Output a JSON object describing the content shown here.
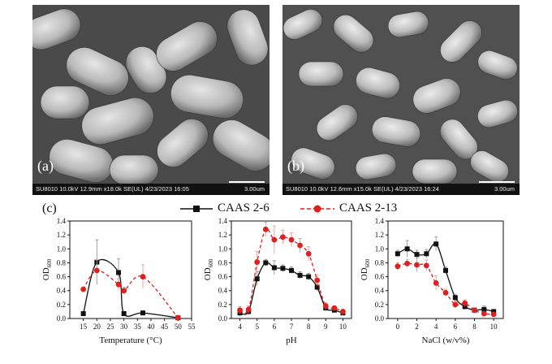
{
  "panels": {
    "a": {
      "letter": "(a)",
      "meta": "SU8010 10.0kV 12.9mm x18.0k SE(UL) 4/23/2023 16:05",
      "scale": "3.00um"
    },
    "b": {
      "letter": "(b)",
      "meta": "SU8010 10.0kV 12.6mm x15.0k SE(UL) 4/23/2023 16:24",
      "scale": "3.00um"
    },
    "c": {
      "letter": "(c)"
    }
  },
  "legend": {
    "series1": "CAAS 2-6",
    "series2": "CAAS 2-13"
  },
  "colors": {
    "series1": "#111111",
    "series2": "#e02020"
  },
  "chart_data": [
    {
      "type": "line",
      "xlabel": "Temperature (°C)",
      "ylabel": "OD600",
      "xlim": [
        10,
        55
      ],
      "ylim": [
        0,
        1.4
      ],
      "xticks": [
        15,
        20,
        25,
        30,
        35,
        40,
        45,
        50,
        55
      ],
      "yticks": [
        0.0,
        0.2,
        0.4,
        0.6,
        0.8,
        1.0,
        1.2,
        1.4
      ],
      "series": [
        {
          "name": "CAAS 2-6",
          "x": [
            15,
            20,
            28,
            30,
            37,
            50
          ],
          "y": [
            0.07,
            0.81,
            0.66,
            0.07,
            0.08,
            0.01
          ],
          "err": [
            0,
            0.32,
            0.2,
            0,
            0.02,
            0
          ]
        },
        {
          "name": "CAAS 2-13",
          "x": [
            15,
            20,
            28,
            30,
            37,
            50
          ],
          "y": [
            0.42,
            0.69,
            0.49,
            0.4,
            0.6,
            0.01
          ],
          "err": [
            0,
            0.15,
            0.08,
            0.05,
            0.17,
            0
          ]
        }
      ]
    },
    {
      "type": "line",
      "xlabel": "pH",
      "ylabel": "OD600",
      "xlim": [
        3.5,
        10.5
      ],
      "ylim": [
        0,
        1.4
      ],
      "xticks": [
        4,
        5,
        6,
        7,
        8,
        9,
        10
      ],
      "yticks": [
        0.0,
        0.2,
        0.4,
        0.6,
        0.8,
        1.0,
        1.2,
        1.4
      ],
      "series": [
        {
          "name": "CAAS 2-6",
          "x": [
            4,
            4.5,
            5,
            5.5,
            6,
            6.5,
            7,
            7.5,
            8,
            8.5,
            9,
            9.5,
            10
          ],
          "y": [
            0.08,
            0.1,
            0.57,
            0.8,
            0.73,
            0.72,
            0.69,
            0.62,
            0.6,
            0.45,
            0.15,
            0.12,
            0.08
          ],
          "err": [
            0.05,
            0.05,
            0.1,
            0.05,
            0.1,
            0.05,
            0.05,
            0.05,
            0.05,
            0.05,
            0.03,
            0.03,
            0.03
          ]
        },
        {
          "name": "CAAS 2-13",
          "x": [
            4,
            4.5,
            5,
            5.5,
            6,
            6.5,
            7,
            7.5,
            8,
            8.5,
            9,
            9.5,
            10
          ],
          "y": [
            0.12,
            0.13,
            0.81,
            1.28,
            1.13,
            1.17,
            1.13,
            1.05,
            0.93,
            0.55,
            0.18,
            0.15,
            0.1
          ],
          "err": [
            0.05,
            0.05,
            0.15,
            0.1,
            0.2,
            0.1,
            0.1,
            0.1,
            0.1,
            0.08,
            0.05,
            0.03,
            0.03
          ]
        }
      ]
    },
    {
      "type": "line",
      "xlabel": "NaCl (w/v%)",
      "ylabel": "OD600",
      "xlim": [
        -1,
        11
      ],
      "ylim": [
        0,
        1.4
      ],
      "xticks": [
        0,
        2,
        4,
        6,
        8,
        10
      ],
      "yticks": [
        0.0,
        0.2,
        0.4,
        0.6,
        0.8,
        1.0,
        1.2,
        1.4
      ],
      "series": [
        {
          "name": "CAAS 2-6",
          "x": [
            0,
            1,
            2,
            3,
            4,
            5,
            6,
            7,
            8,
            9,
            10
          ],
          "y": [
            0.93,
            1.0,
            0.92,
            0.93,
            1.07,
            0.69,
            0.3,
            0.17,
            0.12,
            0.13,
            0.1
          ],
          "err": [
            0.05,
            0.12,
            0.06,
            0.06,
            0.1,
            0.05,
            0.05,
            0.03,
            0.03,
            0.05,
            0.03
          ]
        },
        {
          "name": "CAAS 2-13",
          "x": [
            0,
            1,
            2,
            3,
            4,
            5,
            6,
            7,
            8,
            9,
            10
          ],
          "y": [
            0.75,
            0.79,
            0.77,
            0.76,
            0.51,
            0.37,
            0.2,
            0.22,
            0.12,
            0.07,
            0.06
          ],
          "err": [
            0.05,
            0.06,
            0.1,
            0.08,
            0.1,
            0.05,
            0.05,
            0.05,
            0.03,
            0.03,
            0.02
          ]
        }
      ]
    }
  ]
}
